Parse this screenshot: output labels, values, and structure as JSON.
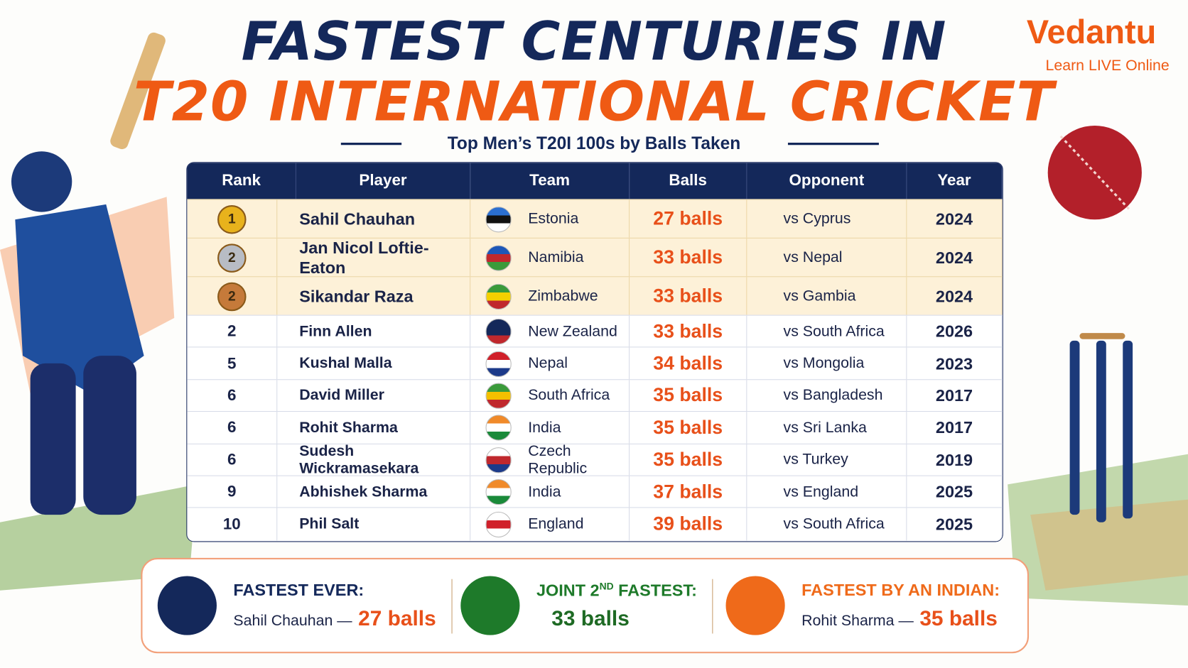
{
  "header": {
    "title_line1": "FASTEST CENTURIES IN",
    "title_line2": "T20 INTERNATIONAL CRICKET",
    "subtitle": "Top Men’s T20I 100s by Balls Taken"
  },
  "logo": {
    "name": "Vedantu",
    "tagline": "Learn LIVE Online"
  },
  "table": {
    "columns": [
      "Rank",
      "Player",
      "Team",
      "Balls",
      "Opponent",
      "Year"
    ],
    "rows": [
      {
        "rank": 1,
        "medal": true,
        "player": "Sahil Chauhan",
        "team": "Estonia",
        "balls": "27 balls",
        "opponent": "vs Cyprus",
        "year": 2024
      },
      {
        "rank": 2,
        "medal": true,
        "player": "Jan Nicol Loftie-Eaton",
        "team": "Namibia",
        "balls": "33 balls",
        "opponent": "vs Nepal",
        "year": 2024
      },
      {
        "rank": 2,
        "medal": true,
        "player": "Sikandar Raza",
        "team": "Zimbabwe",
        "balls": "33 balls",
        "opponent": "vs Gambia",
        "year": 2024
      },
      {
        "rank": 2,
        "medal": false,
        "player": "Finn Allen",
        "team": "New Zealand",
        "balls": "33 balls",
        "opponent": "vs South Africa",
        "year": 2026
      },
      {
        "rank": 5,
        "medal": false,
        "player": "Kushal Malla",
        "team": "Nepal",
        "balls": "34 balls",
        "opponent": "vs Mongolia",
        "year": 2023
      },
      {
        "rank": 6,
        "medal": false,
        "player": "David Miller",
        "team": "South Africa",
        "balls": "35 balls",
        "opponent": "vs Bangladesh",
        "year": 2017
      },
      {
        "rank": 6,
        "medal": false,
        "player": "Rohit Sharma",
        "team": "India",
        "balls": "35 balls",
        "opponent": "vs Sri Lanka",
        "year": 2017
      },
      {
        "rank": 6,
        "medal": false,
        "player": "Sudesh Wickramasekara",
        "team": "Czech Republic",
        "balls": "35 balls",
        "opponent": "vs Turkey",
        "year": 2019
      },
      {
        "rank": 9,
        "medal": false,
        "player": "Abhishek Sharma",
        "team": "India",
        "balls": "37 balls",
        "opponent": "vs England",
        "year": 2025
      },
      {
        "rank": 10,
        "medal": false,
        "player": "Phil Salt",
        "team": "England",
        "balls": "39 balls",
        "opponent": "vs South Africa",
        "year": 2025
      }
    ]
  },
  "summary": [
    {
      "label": "FASTEST EVER:",
      "name": "Sahil Chauhan —",
      "value": "27 balls"
    },
    {
      "label_prefix": "JOINT 2",
      "label_sup": "ND",
      "label_suffix": " FASTEST:",
      "value": "33 balls"
    },
    {
      "label": "FASTEST BY AN INDIAN:",
      "name": "Rohit Sharma —",
      "value": "35 balls"
    }
  ]
}
